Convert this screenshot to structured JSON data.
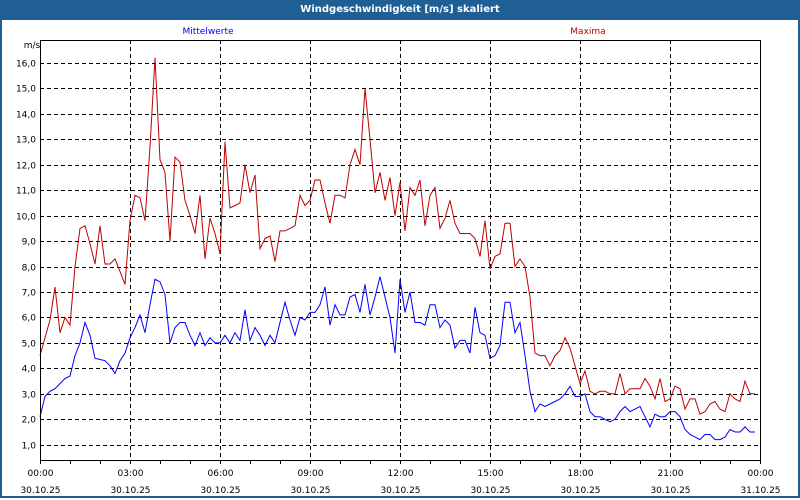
{
  "window": {
    "title": "Windgeschwindigkeit [m/s] skaliert"
  },
  "chart_data": {
    "type": "line",
    "title": "Windgeschwindigkeit [m/s] skaliert",
    "ylabel": "m/s",
    "xlabel": "",
    "ylim": [
      0.4,
      16.9
    ],
    "xlim_hours": [
      0,
      24
    ],
    "grid": true,
    "y_ticks": [
      "1,0",
      "2,0",
      "3,0",
      "4,0",
      "5,0",
      "6,0",
      "7,0",
      "8,0",
      "9,0",
      "10,0",
      "11,0",
      "12,0",
      "13,0",
      "14,0",
      "15,0",
      "16,0"
    ],
    "y_tick_values": [
      1,
      2,
      3,
      4,
      5,
      6,
      7,
      8,
      9,
      10,
      11,
      12,
      13,
      14,
      15,
      16
    ],
    "x_ticks": [
      {
        "hour": 0,
        "time": "00:00",
        "date": "30.10.25"
      },
      {
        "hour": 3,
        "time": "03:00",
        "date": "30.10.25"
      },
      {
        "hour": 6,
        "time": "06:00",
        "date": "30.10.25"
      },
      {
        "hour": 9,
        "time": "09:00",
        "date": "30.10.25"
      },
      {
        "hour": 12,
        "time": "12:00",
        "date": "30.10.25"
      },
      {
        "hour": 15,
        "time": "15:00",
        "date": "30.10.25"
      },
      {
        "hour": 18,
        "time": "18:00",
        "date": "30.10.25"
      },
      {
        "hour": 21,
        "time": "21:00",
        "date": "30.10.25"
      },
      {
        "hour": 24,
        "time": "00:00",
        "date": "31.10.25"
      }
    ],
    "interval_minutes": 10,
    "series": [
      {
        "name": "Mittelwerte",
        "color": "#0000ff",
        "legend_position": "top-left",
        "values": [
          2.1,
          2.9,
          3.1,
          3.2,
          3.4,
          3.6,
          3.7,
          4.5,
          5.0,
          5.8,
          5.3,
          4.4,
          4.35,
          4.3,
          4.1,
          3.8,
          4.3,
          4.6,
          5.2,
          5.6,
          6.1,
          5.4,
          6.5,
          7.5,
          7.4,
          6.9,
          5.0,
          5.6,
          5.8,
          5.8,
          5.3,
          4.9,
          5.4,
          4.9,
          5.2,
          5.0,
          5.0,
          5.3,
          5.0,
          5.4,
          5.1,
          6.3,
          5.1,
          5.6,
          5.3,
          4.9,
          5.3,
          5.0,
          5.8,
          6.6,
          5.9,
          5.3,
          6.0,
          5.9,
          6.2,
          6.2,
          6.5,
          7.2,
          5.7,
          6.5,
          6.1,
          6.1,
          6.8,
          6.9,
          6.2,
          7.3,
          6.1,
          6.8,
          7.6,
          6.8,
          6.0,
          4.6,
          7.5,
          6.2,
          7.0,
          5.8,
          5.8,
          5.7,
          6.5,
          6.5,
          5.6,
          5.9,
          5.7,
          4.8,
          5.1,
          5.1,
          4.6,
          6.4,
          5.4,
          5.3,
          4.4,
          4.5,
          4.9,
          6.6,
          6.6,
          5.4,
          5.8,
          4.5,
          3.1,
          2.3,
          2.6,
          2.5,
          2.6,
          2.7,
          2.8,
          3.0,
          3.3,
          2.9,
          2.9,
          3.0,
          2.3,
          2.1,
          2.1,
          2.0,
          1.9,
          2.0,
          2.3,
          2.5,
          2.3,
          2.4,
          2.5,
          2.1,
          1.7,
          2.2,
          2.1,
          2.1,
          2.3,
          2.3,
          2.1,
          1.6,
          1.4,
          1.3,
          1.2,
          1.4,
          1.4,
          1.2,
          1.2,
          1.3,
          1.6,
          1.5,
          1.5,
          1.7,
          1.5,
          1.5
        ]
      },
      {
        "name": "Maxima",
        "color": "#c00000",
        "legend_position": "top-right",
        "values": [
          4.5,
          5.2,
          5.9,
          7.2,
          5.4,
          6.0,
          5.7,
          8.0,
          9.5,
          9.6,
          8.9,
          8.1,
          9.6,
          8.1,
          8.1,
          8.3,
          7.8,
          7.3,
          9.8,
          10.8,
          10.7,
          9.8,
          12.7,
          16.2,
          12.2,
          11.7,
          9.0,
          12.3,
          12.1,
          10.6,
          10.0,
          9.3,
          10.8,
          8.3,
          9.9,
          9.3,
          8.5,
          12.9,
          10.3,
          10.4,
          10.5,
          12.0,
          10.9,
          11.6,
          8.7,
          9.1,
          9.2,
          8.2,
          9.4,
          9.4,
          9.5,
          9.6,
          10.8,
          10.4,
          10.6,
          11.4,
          11.4,
          10.5,
          9.7,
          10.8,
          10.8,
          10.7,
          12.0,
          12.6,
          12.0,
          15.0,
          13.0,
          10.9,
          11.7,
          10.6,
          11.5,
          10.0,
          11.3,
          9.4,
          11.1,
          10.8,
          11.4,
          9.6,
          10.8,
          11.1,
          9.5,
          9.9,
          10.6,
          9.7,
          9.3,
          9.3,
          9.3,
          9.1,
          8.4,
          9.8,
          7.9,
          8.4,
          8.5,
          9.7,
          9.7,
          8.0,
          8.3,
          8.0,
          6.8,
          4.6,
          4.5,
          4.5,
          4.1,
          4.5,
          4.7,
          5.2,
          4.8,
          4.1,
          3.4,
          3.9,
          3.1,
          3.0,
          3.1,
          3.1,
          3.0,
          3.0,
          3.8,
          3.0,
          3.2,
          3.2,
          3.2,
          3.6,
          3.3,
          2.8,
          3.6,
          2.7,
          2.8,
          3.3,
          3.2,
          2.4,
          2.8,
          2.8,
          2.2,
          2.3,
          2.6,
          2.7,
          2.4,
          2.3,
          3.0,
          2.8,
          2.7,
          3.5,
          3.0,
          3.0
        ]
      }
    ]
  }
}
